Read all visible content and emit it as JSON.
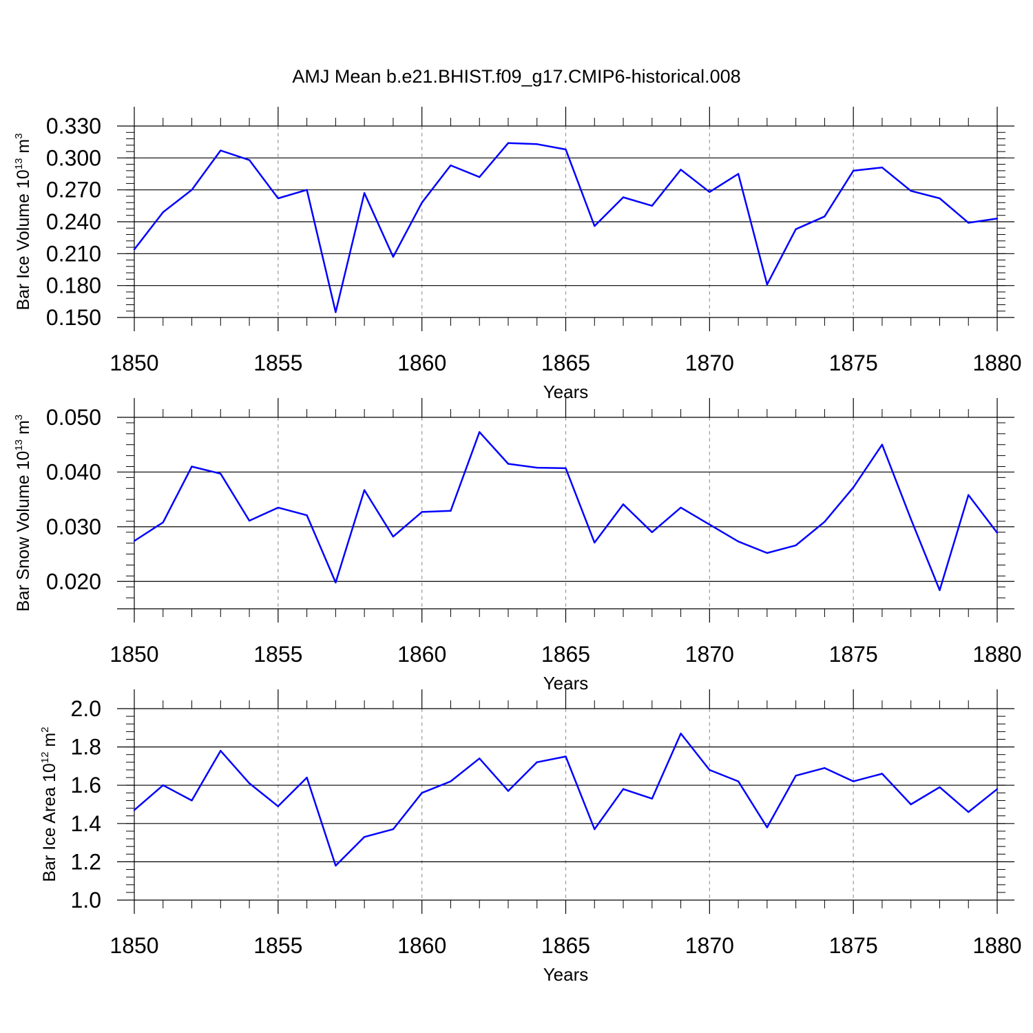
{
  "title": "AMJ Mean b.e21.BHIST.f09_g17.CMIP6-historical.008",
  "colors": {
    "line": "#0000ff",
    "axis": "#000000",
    "grid": "#999999"
  },
  "chart_data": [
    {
      "type": "line",
      "xlabel": "Years",
      "ylabel_pre": "Bar Ice Volume 10",
      "ylabel_exp": "13",
      "ylabel_post": " m",
      "ylabel_unit_exp": "3",
      "xlim": [
        1850,
        1880
      ],
      "ylim": [
        0.15,
        0.33
      ],
      "xticks": [
        "1850",
        "1855",
        "1860",
        "1865",
        "1870",
        "1875",
        "1880"
      ],
      "xtick_values": [
        1850,
        1855,
        1860,
        1865,
        1870,
        1875,
        1880
      ],
      "yticks": [
        "0.150",
        "0.180",
        "0.210",
        "0.240",
        "0.270",
        "0.300",
        "0.330"
      ],
      "ytick_values": [
        0.15,
        0.18,
        0.21,
        0.24,
        0.27,
        0.3,
        0.33
      ],
      "yminor": 0.006,
      "x": [
        1850,
        1851,
        1852,
        1853,
        1854,
        1855,
        1856,
        1857,
        1858,
        1859,
        1860,
        1861,
        1862,
        1863,
        1864,
        1865,
        1866,
        1867,
        1868,
        1869,
        1870,
        1871,
        1872,
        1873,
        1874,
        1875,
        1876,
        1877,
        1878,
        1879,
        1880
      ],
      "values": [
        0.214,
        0.249,
        0.27,
        0.307,
        0.298,
        0.262,
        0.27,
        0.155,
        0.267,
        0.207,
        0.258,
        0.293,
        0.282,
        0.314,
        0.313,
        0.308,
        0.236,
        0.263,
        0.255,
        0.289,
        0.268,
        0.285,
        0.181,
        0.233,
        0.245,
        0.288,
        0.291,
        0.269,
        0.262,
        0.239,
        0.243
      ]
    },
    {
      "type": "line",
      "xlabel": "Years",
      "ylabel_pre": "Bar Snow Volume 10",
      "ylabel_exp": "13",
      "ylabel_post": " m",
      "ylabel_unit_exp": "3",
      "xlim": [
        1850,
        1880
      ],
      "ylim": [
        0.015,
        0.05
      ],
      "xticks": [
        "1850",
        "1855",
        "1860",
        "1865",
        "1870",
        "1875",
        "1880"
      ],
      "xtick_values": [
        1850,
        1855,
        1860,
        1865,
        1870,
        1875,
        1880
      ],
      "yticks": [
        "0.020",
        "0.030",
        "0.040",
        "0.050"
      ],
      "ytick_values": [
        0.02,
        0.03,
        0.04,
        0.05
      ],
      "yminor": 0.002,
      "x": [
        1850,
        1851,
        1852,
        1853,
        1854,
        1855,
        1856,
        1857,
        1858,
        1859,
        1860,
        1861,
        1862,
        1863,
        1864,
        1865,
        1866,
        1867,
        1868,
        1869,
        1870,
        1871,
        1872,
        1873,
        1874,
        1875,
        1876,
        1877,
        1878,
        1879,
        1880
      ],
      "values": [
        0.0274,
        0.0308,
        0.041,
        0.0397,
        0.0311,
        0.0335,
        0.0321,
        0.0198,
        0.0367,
        0.0282,
        0.0327,
        0.0329,
        0.0473,
        0.0415,
        0.0408,
        0.0407,
        0.0271,
        0.0341,
        0.029,
        0.0335,
        0.0304,
        0.0273,
        0.0252,
        0.0266,
        0.0309,
        0.0372,
        0.045,
        0.0314,
        0.0184,
        0.0358,
        0.0289
      ]
    },
    {
      "type": "line",
      "xlabel": "Years",
      "ylabel_pre": "Bar Ice Area 10",
      "ylabel_exp": "12",
      "ylabel_post": " m",
      "ylabel_unit_exp": "2",
      "xlim": [
        1850,
        1880
      ],
      "ylim": [
        1.0,
        2.0
      ],
      "xticks": [
        "1850",
        "1855",
        "1860",
        "1865",
        "1870",
        "1875",
        "1880"
      ],
      "xtick_values": [
        1850,
        1855,
        1860,
        1865,
        1870,
        1875,
        1880
      ],
      "yticks": [
        "1.0",
        "1.2",
        "1.4",
        "1.6",
        "1.8",
        "2.0"
      ],
      "ytick_values": [
        1.0,
        1.2,
        1.4,
        1.6,
        1.8,
        2.0
      ],
      "yminor": 0.04,
      "x": [
        1850,
        1851,
        1852,
        1853,
        1854,
        1855,
        1856,
        1857,
        1858,
        1859,
        1860,
        1861,
        1862,
        1863,
        1864,
        1865,
        1866,
        1867,
        1868,
        1869,
        1870,
        1871,
        1872,
        1873,
        1874,
        1875,
        1876,
        1877,
        1878,
        1879,
        1880
      ],
      "values": [
        1.47,
        1.6,
        1.52,
        1.78,
        1.61,
        1.49,
        1.64,
        1.18,
        1.33,
        1.37,
        1.56,
        1.62,
        1.74,
        1.57,
        1.72,
        1.75,
        1.37,
        1.58,
        1.53,
        1.87,
        1.68,
        1.62,
        1.38,
        1.65,
        1.69,
        1.62,
        1.66,
        1.5,
        1.59,
        1.46,
        1.58
      ]
    }
  ]
}
